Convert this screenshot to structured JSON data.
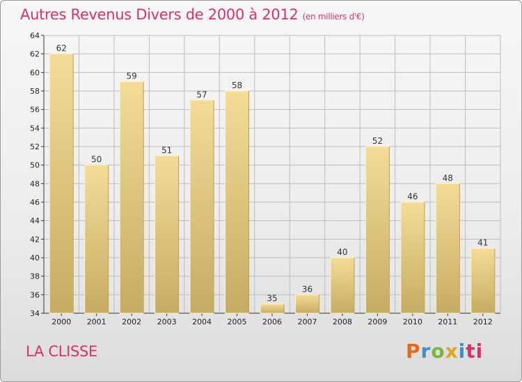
{
  "header": {
    "title": "Autres Revenus Divers de 2000 à 2012",
    "unit": "(en milliers d'€)"
  },
  "place": "LA CLISSE",
  "logo": [
    "P",
    "r",
    "o",
    "x",
    "i",
    "ti"
  ],
  "colors": {
    "title": "#d8316a",
    "bar_top": "#f4dc98",
    "bar_bottom": "#c6ac62",
    "grid": "#bcbcbc"
  },
  "chart_data": {
    "type": "bar",
    "title": "Autres Revenus Divers de 2000 à 2012",
    "subtitle": "(en milliers d'€)",
    "xlabel": "",
    "ylabel": "",
    "categories": [
      "2000",
      "2001",
      "2002",
      "2003",
      "2004",
      "2005",
      "2006",
      "2007",
      "2008",
      "2009",
      "2010",
      "2011",
      "2012"
    ],
    "values": [
      62,
      50,
      59,
      51,
      57,
      58,
      35,
      36,
      40,
      52,
      46,
      48,
      41
    ],
    "ylim": [
      34,
      64
    ],
    "yticks": [
      34,
      36,
      38,
      40,
      42,
      44,
      46,
      48,
      50,
      52,
      54,
      56,
      58,
      60,
      62,
      64
    ],
    "grid": true,
    "legend": "none"
  }
}
